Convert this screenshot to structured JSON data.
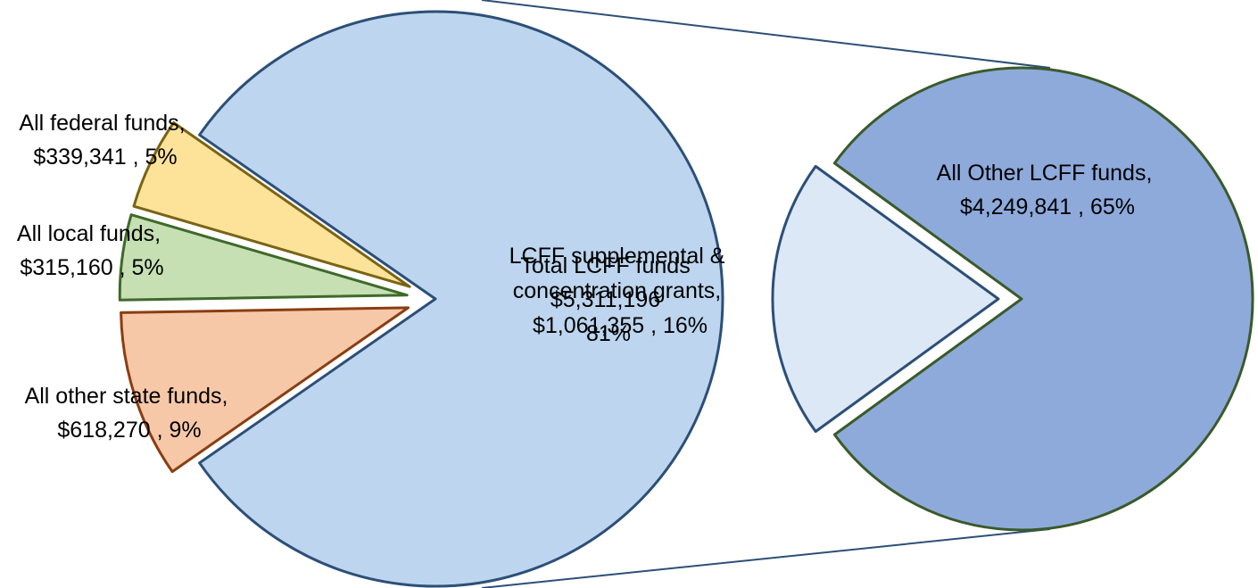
{
  "chart_data": [
    {
      "type": "pie",
      "title": "",
      "slices": [
        {
          "label_line1": "Total LCFF funds",
          "label_line2": "$5,311,196",
          "label_line3": "81%",
          "value": 5311196,
          "percent": 81,
          "color": "#bdd5ee",
          "stroke": "#2c4f78"
        },
        {
          "label_line1": "All federal funds,",
          "label_line2": "$339,341 , 5%",
          "value": 339341,
          "percent": 5,
          "color": "#fde39a",
          "stroke": "#7a6414"
        },
        {
          "label_line1": "All local funds,",
          "label_line2": "$315,160 , 5%",
          "value": 315160,
          "percent": 5,
          "color": "#c6dfb3",
          "stroke": "#3e6a2a"
        },
        {
          "label_line1": "All other state funds,",
          "label_line2": "$618,270 , 9%",
          "value": 618270,
          "percent": 9,
          "color": "#f7c8a8",
          "stroke": "#8a3e12"
        }
      ]
    },
    {
      "type": "pie",
      "title": "",
      "slices": [
        {
          "label_line1": "All Other LCFF funds,",
          "label_line2": "$4,249,841 , 65%",
          "value": 4249841,
          "percent": 65,
          "color": "#8eaadb",
          "stroke": "#3a5a2a"
        },
        {
          "label_line1": "LCFF supplemental &",
          "label_line2": "concentration grants,",
          "label_line3": "$1,061,355 , 16%",
          "value": 1061355,
          "percent": 16,
          "color": "#dce8f5",
          "stroke": "#2c4f78"
        }
      ]
    }
  ]
}
